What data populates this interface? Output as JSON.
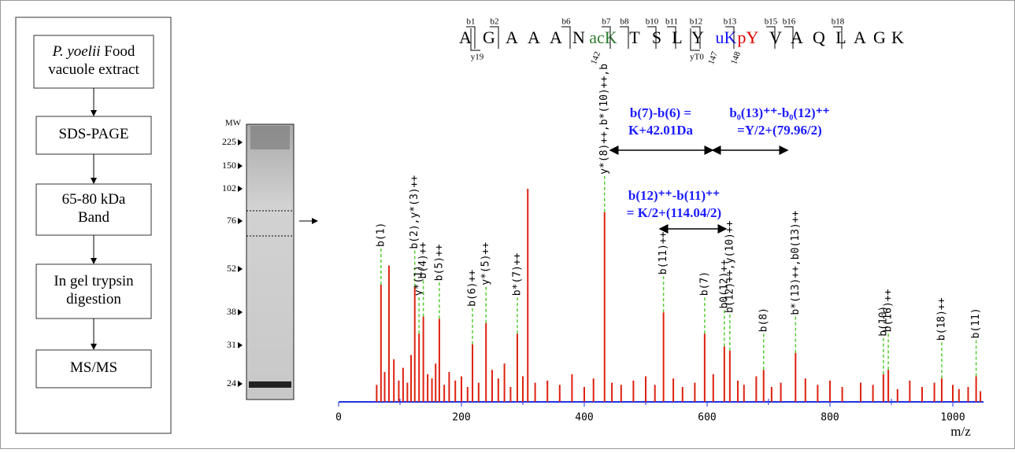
{
  "flowchart": {
    "steps": [
      {
        "lines": [
          {
            "italic": "P. yoelii",
            "text": "Food"
          },
          {
            "text": "vacuole extract"
          }
        ]
      },
      {
        "lines": [
          {
            "text": "SDS-PAGE"
          }
        ]
      },
      {
        "lines": [
          {
            "text": "65-80 kDa"
          },
          {
            "text": "Band"
          }
        ]
      },
      {
        "lines": [
          {
            "text": "In gel trypsin"
          },
          {
            "text": "digestion"
          }
        ]
      },
      {
        "lines": [
          {
            "text": "MS/MS"
          }
        ]
      }
    ]
  },
  "gel": {
    "mw_label": "MW",
    "markers": [
      "225",
      "150",
      "102",
      "76",
      "52",
      "38",
      "31",
      "24"
    ]
  },
  "peptide": {
    "residues": [
      "A",
      "G",
      "A",
      "A",
      "A",
      "N",
      "acK",
      "T",
      "S",
      "L",
      "Y",
      "uK",
      "pY",
      "V",
      "A",
      "Q",
      "L",
      "A",
      "G",
      "K"
    ],
    "residue_colors": [
      "#000",
      "#000",
      "#000",
      "#000",
      "#000",
      "#000",
      "#2e7d32",
      "#000",
      "#000",
      "#000",
      "#000",
      "#1a1aff",
      "#e00000",
      "#000",
      "#000",
      "#000",
      "#000",
      "#000",
      "#000",
      "#000"
    ],
    "b_ions": [
      "b1",
      "b2",
      "b6",
      "b7",
      "b8",
      "b10",
      "b11",
      "b12",
      "b13",
      "b15",
      "b16",
      "b18"
    ],
    "y_ions": [
      "y19",
      "yT0"
    ],
    "sites": [
      "142",
      "147",
      "148"
    ]
  },
  "annotations": [
    {
      "lines": [
        "b(7)-b(6) =",
        "K+42.01Da"
      ]
    },
    {
      "lines": [
        "b₀(13)⁺⁺-b₀(12)⁺⁺",
        "=Y/2+(79.96/2)"
      ]
    },
    {
      "lines": [
        "b(12)⁺⁺-b(11)⁺⁺",
        "= K/2+(114.04/2)"
      ]
    }
  ],
  "chart_data": {
    "type": "bar",
    "x_label": "m/z",
    "color": "#dd2211",
    "label_line_color": "#55cc33",
    "axis_color": "#2233dd",
    "xlim": [
      0,
      1050
    ],
    "xticks": [
      0,
      200,
      400,
      600,
      800,
      1000
    ],
    "minor_xticks": [
      100,
      300,
      500,
      700,
      900
    ],
    "ylim": [
      0,
      100
    ],
    "x": [
      69,
      82,
      124,
      131,
      138,
      164,
      218,
      240,
      291,
      308,
      433,
      529,
      596,
      628,
      637,
      692,
      744,
      887,
      895,
      982,
      1038,
      62,
      75,
      90,
      98,
      105,
      112,
      118,
      145,
      152,
      158,
      172,
      180,
      190,
      200,
      210,
      228,
      250,
      260,
      270,
      280,
      300,
      320,
      340,
      360,
      380,
      400,
      415,
      445,
      460,
      480,
      500,
      515,
      545,
      560,
      580,
      610,
      650,
      660,
      680,
      705,
      720,
      760,
      780,
      800,
      820,
      850,
      870,
      910,
      930,
      950,
      970,
      1000,
      1010,
      1025,
      1045
    ],
    "values": [
      55,
      64,
      54,
      32,
      40,
      39,
      27,
      37,
      32,
      100,
      89,
      42,
      32,
      26,
      24,
      15,
      23,
      13,
      15,
      11,
      12,
      8,
      14,
      20,
      10,
      16,
      9,
      22,
      13,
      11,
      18,
      8,
      14,
      10,
      12,
      7,
      9,
      15,
      11,
      18,
      7,
      12,
      9,
      10,
      8,
      13,
      7,
      11,
      9,
      8,
      10,
      12,
      8,
      11,
      7,
      9,
      13,
      10,
      8,
      12,
      7,
      9,
      11,
      8,
      10,
      7,
      9,
      8,
      6,
      10,
      7,
      9,
      8,
      6,
      7,
      5
    ],
    "labels": [
      "b(1)",
      null,
      "b(2),y*(3)++",
      "y*(1)",
      "b(4)++",
      "b(5)++",
      "b(6)++",
      "y*(5)++",
      "b*(7)++",
      null,
      "y*(8)++,b*(10)++,b",
      "b(11)++",
      "b(7)",
      "b0(12)++",
      "b(12)++,y(10)++",
      "b(8)",
      "b*(13)++,b0(13)++",
      "b(10)",
      "b(16)++",
      "b(18)++",
      "b(11)",
      null,
      null,
      null,
      null,
      null,
      null,
      null,
      null,
      null,
      null,
      null,
      null,
      null,
      null,
      null,
      null,
      null,
      null,
      null,
      null,
      null,
      null,
      null,
      null,
      null,
      null,
      null,
      null,
      null,
      null,
      null,
      null,
      null,
      null,
      null,
      null,
      null,
      null,
      null,
      null,
      null,
      null,
      null,
      null,
      null,
      null,
      null,
      null,
      null,
      null,
      null,
      null,
      null,
      null,
      null
    ]
  }
}
